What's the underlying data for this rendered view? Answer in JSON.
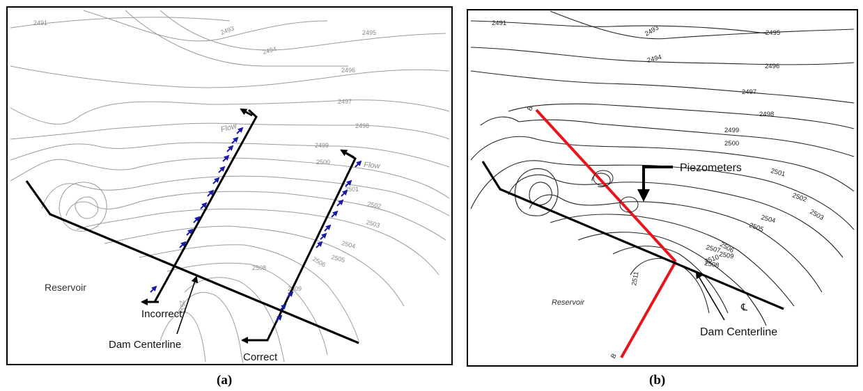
{
  "panel_a": {
    "caption": "(a)",
    "contour_labels": [
      "2491",
      "2493",
      "2495",
      "2494",
      "2496",
      "2497",
      "2498",
      "2499",
      "2500",
      "2501",
      "2502",
      "2503",
      "2504",
      "2505",
      "2506",
      "2508",
      "2509",
      "2511"
    ],
    "flow_label_1": "Flow",
    "flow_label_2": "Flow",
    "reservoir_label": "Reservoir",
    "incorrect_label": "Incorrect",
    "correct_label": "Correct",
    "dam_label": "Dam Centerline"
  },
  "panel_b": {
    "caption": "(b)",
    "contour_labels": [
      "2491",
      "2493",
      "2495",
      "2494",
      "2496",
      "2497",
      "2498",
      "2499",
      "2500",
      "2501",
      "2502",
      "2503",
      "2504",
      "2505",
      "2506",
      "2507",
      "2508",
      "2509",
      "2510",
      "2511"
    ],
    "piezometers_label": "Piezometers",
    "reservoir_label": "Reservoir",
    "dam_label": "Dam Centerline",
    "section_label_top": "B",
    "section_label_bottom": "B"
  },
  "colors": {
    "arrow_blue": "#1a1aa8",
    "section_red": "#e8141c",
    "contour_a": "#9a9a9a",
    "contour_b": "#222222"
  }
}
